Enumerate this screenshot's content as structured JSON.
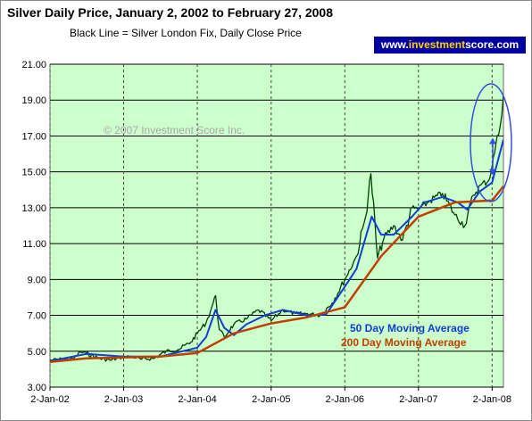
{
  "header": {
    "title": "Silver Daily Price, January 2, 2002 to February 27, 2008",
    "subtitle": "Black Line = Silver London Fix, Daily Close Price",
    "site_prefix": "www.",
    "site_highlight": "investment",
    "site_suffix": "score.com"
  },
  "copyright": "© 2007 Investment Score Inc.",
  "legend": {
    "ma50": "50 Day Moving Average",
    "ma200": "200 Day Moving Average"
  },
  "colors": {
    "plot_bg": "#ccffcc",
    "price": "#004000",
    "ma50": "#1040d0",
    "ma200": "#c04000",
    "highlight": "#3050e0"
  },
  "chart_data": {
    "type": "line",
    "title": "Silver Daily Price, January 2, 2002 to February 27, 2008",
    "subtitle": "Black Line = Silver London Fix, Daily Close Price",
    "xlabel": "",
    "ylabel": "",
    "x_ticks": [
      "2-Jan-02",
      "2-Jan-03",
      "2-Jan-04",
      "2-Jan-05",
      "2-Jan-06",
      "2-Jan-07",
      "2-Jan-08"
    ],
    "y_ticks": [
      "3.00",
      "5.00",
      "7.00",
      "9.00",
      "11.00",
      "13.00",
      "15.00",
      "17.00",
      "19.00",
      "21.00"
    ],
    "ylim": [
      3,
      21
    ],
    "xlim": [
      "2002-01-02",
      "2008-02-27"
    ],
    "grid": "horizontal lines + dashed vertical lines",
    "series": [
      {
        "name": "Black Line = Silver London Fix, Daily Close Price",
        "x": [
          "2002-01-02",
          "2002-03-01",
          "2002-05-01",
          "2002-06-01",
          "2002-07-01",
          "2002-09-01",
          "2002-11-01",
          "2003-01-02",
          "2003-02-15",
          "2003-04-01",
          "2003-06-01",
          "2003-08-01",
          "2003-10-01",
          "2003-12-01",
          "2004-01-02",
          "2004-02-15",
          "2004-03-15",
          "2004-04-02",
          "2004-04-20",
          "2004-05-15",
          "2004-07-01",
          "2004-09-01",
          "2004-11-01",
          "2005-01-02",
          "2005-03-01",
          "2005-05-01",
          "2005-07-01",
          "2005-09-01",
          "2005-11-01",
          "2006-01-02",
          "2006-03-01",
          "2006-04-15",
          "2006-05-11",
          "2006-06-13",
          "2006-07-15",
          "2006-09-01",
          "2006-10-15",
          "2006-12-01",
          "2007-01-02",
          "2007-03-01",
          "2007-05-01",
          "2007-07-01",
          "2007-08-20",
          "2007-10-01",
          "2007-11-10",
          "2007-12-15",
          "2008-01-02",
          "2008-01-20",
          "2008-02-10",
          "2008-02-27"
        ],
        "values": [
          4.5,
          4.55,
          4.6,
          4.95,
          4.9,
          4.6,
          4.5,
          4.7,
          4.7,
          4.55,
          4.6,
          5.0,
          5.1,
          5.5,
          6.0,
          6.6,
          7.5,
          8.1,
          6.2,
          5.8,
          6.5,
          6.8,
          7.3,
          6.7,
          7.3,
          7.1,
          7.1,
          7.0,
          7.7,
          9.0,
          10.3,
          12.5,
          14.9,
          10.2,
          11.3,
          12.0,
          11.2,
          13.0,
          12.9,
          13.4,
          13.8,
          12.6,
          12.0,
          13.7,
          14.3,
          14.5,
          15.3,
          16.5,
          17.5,
          19.3
        ]
      },
      {
        "name": "50 Day Moving Average",
        "x": [
          "2002-01-02",
          "2002-07-01",
          "2003-01-02",
          "2003-07-01",
          "2004-01-02",
          "2004-02-15",
          "2004-04-01",
          "2004-05-15",
          "2004-07-01",
          "2004-09-01",
          "2004-12-01",
          "2005-03-01",
          "2005-07-01",
          "2005-10-01",
          "2006-01-02",
          "2006-03-01",
          "2006-05-15",
          "2006-07-01",
          "2006-09-01",
          "2006-12-01",
          "2007-02-01",
          "2007-05-01",
          "2007-07-15",
          "2007-09-01",
          "2007-11-01",
          "2008-01-02",
          "2008-02-27"
        ],
        "values": [
          4.45,
          4.85,
          4.7,
          4.7,
          5.2,
          5.8,
          7.3,
          6.3,
          5.9,
          6.5,
          7.0,
          7.3,
          7.0,
          7.05,
          8.6,
          9.6,
          12.5,
          11.5,
          11.5,
          12.5,
          13.3,
          13.6,
          13.3,
          12.9,
          13.9,
          14.4,
          16.8
        ]
      },
      {
        "name": "200 Day Moving Average",
        "x": [
          "2002-01-02",
          "2002-07-01",
          "2003-01-02",
          "2003-07-01",
          "2004-01-02",
          "2004-07-01",
          "2005-01-02",
          "2005-07-01",
          "2006-01-02",
          "2006-07-01",
          "2007-01-02",
          "2007-07-01",
          "2008-01-02",
          "2008-02-27"
        ],
        "values": [
          4.4,
          4.6,
          4.65,
          4.7,
          4.9,
          6.0,
          6.55,
          6.9,
          7.45,
          10.3,
          12.5,
          13.3,
          13.4,
          14.2
        ]
      }
    ]
  }
}
